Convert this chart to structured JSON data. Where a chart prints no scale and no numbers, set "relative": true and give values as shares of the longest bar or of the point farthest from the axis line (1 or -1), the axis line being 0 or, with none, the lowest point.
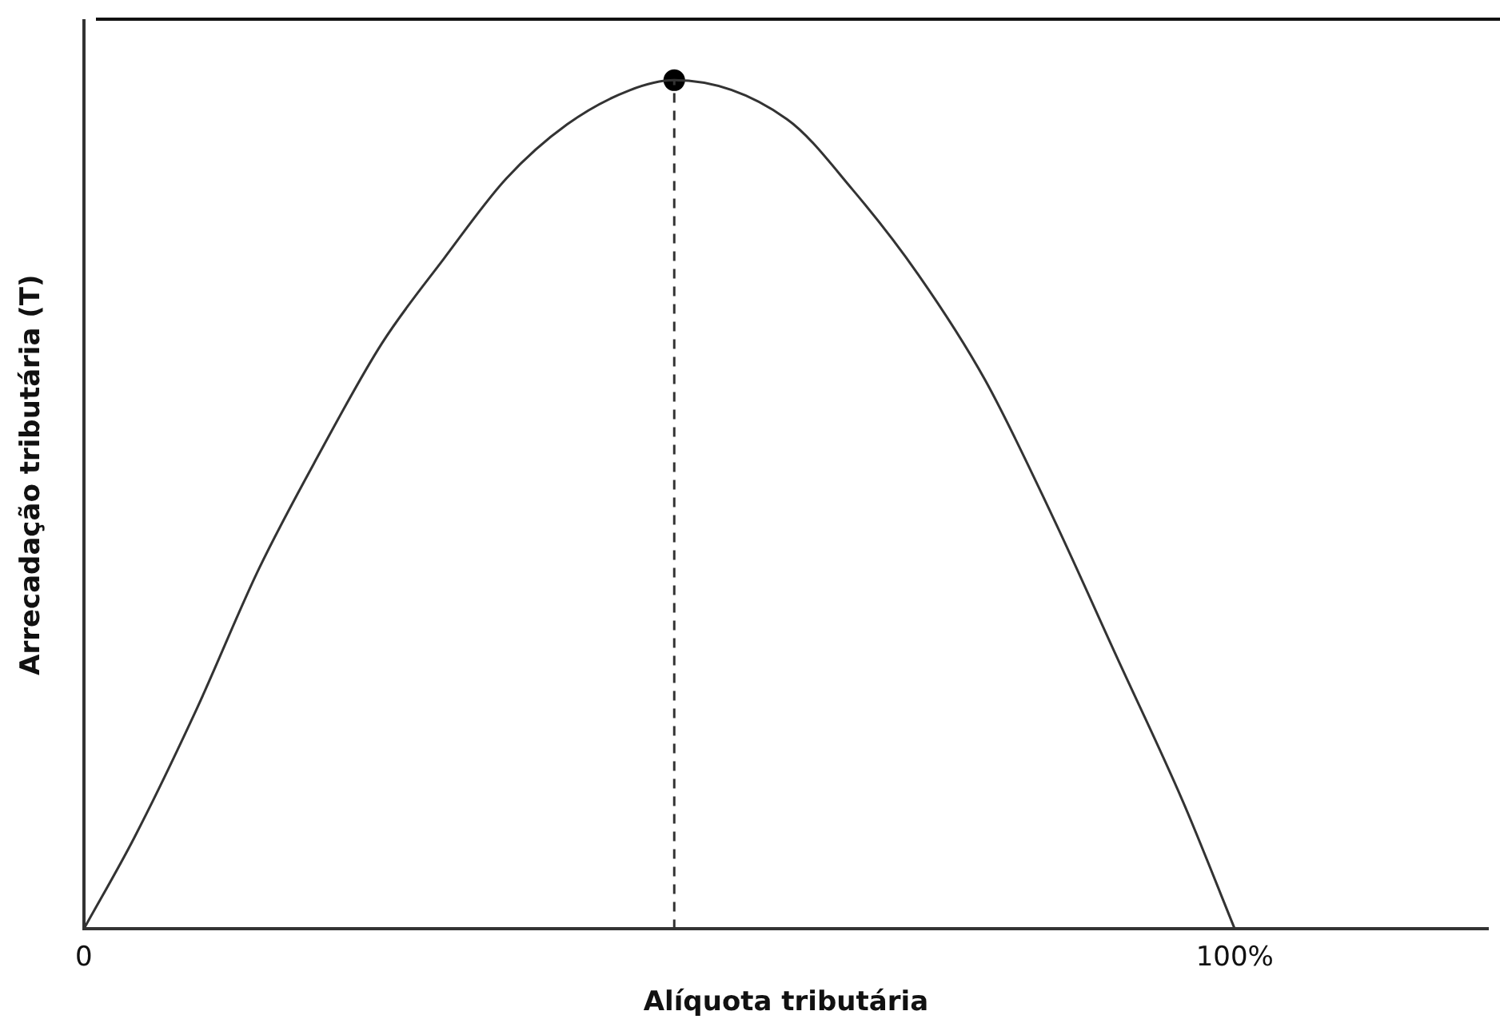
{
  "chart_data": {
    "type": "line",
    "xlabel": "Alíquota tributária",
    "ylabel": "Arrecadação tributária (T)",
    "relative": true,
    "xlim": [
      0,
      122
    ],
    "xticks": [
      0,
      {
        "value": 100,
        "label": "100%"
      }
    ],
    "grid": false,
    "legend": false,
    "marker": "none",
    "line_style": "solid",
    "series": [
      {
        "x": [
          0,
          4.4,
          9.8,
          15.2,
          20.5,
          25.9,
          31.3,
          36.7,
          42.0,
          47.4,
          51.3,
          61.1,
          66.8,
          72.5,
          78.3,
          84.1,
          89.8,
          95.5,
          100
        ],
        "values": [
          0,
          0.108,
          0.259,
          0.424,
          0.561,
          0.69,
          0.79,
          0.884,
          0.948,
          0.988,
          1,
          0.954,
          0.871,
          0.771,
          0.647,
          0.488,
          0.319,
          0.15,
          0
        ],
        "color": "#333333"
      },
      {
        "type": "scatter",
        "x": [
          51.3
        ],
        "values": [
          1
        ],
        "color": "#000000",
        "marker": "circle"
      }
    ],
    "ref_lines": [
      {
        "axis": "x",
        "value": 51.3,
        "line_style": "dashed",
        "color": "#333333"
      }
    ]
  }
}
